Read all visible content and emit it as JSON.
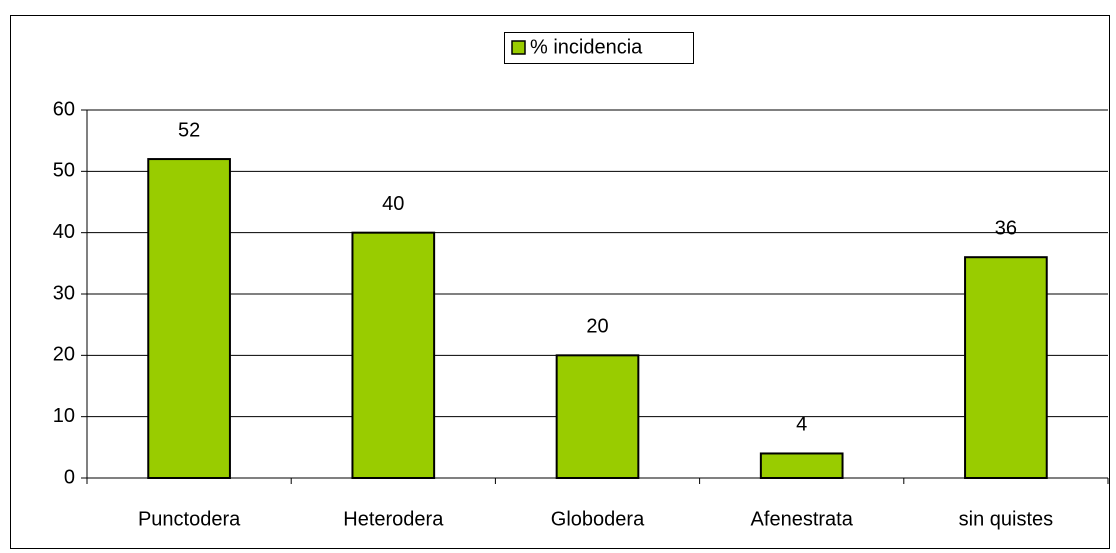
{
  "chart_data": {
    "type": "bar",
    "categories": [
      "Punctodera",
      "Heterodera",
      "Globodera",
      "Afenestrata",
      "sin quistes"
    ],
    "series": [
      {
        "name": "% incidencia",
        "color": "#99cc00",
        "values": [
          52,
          40,
          20,
          4,
          36
        ]
      }
    ],
    "ylim": [
      0,
      60
    ],
    "yticks": [
      0,
      10,
      20,
      30,
      40,
      50,
      60
    ],
    "grid": true,
    "legend": "top",
    "data_labels": true
  }
}
